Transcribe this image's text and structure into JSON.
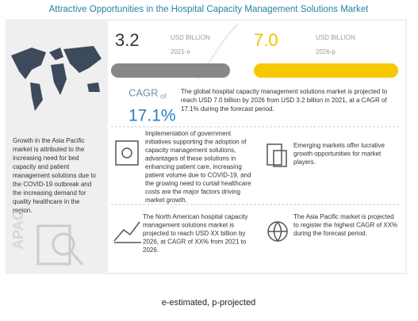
{
  "title": "Attractive Opportunities in the Hospital Capacity Management Solutions Market",
  "left_panel": {
    "text": [
      "Growth in the Asia Pacific",
      "market is attributed to the",
      "increasing need for bed",
      "capacity and patient",
      "management solutions due to",
      "the COVID-19 outbreak and",
      "the increasing demand for",
      "quality healthcare in the",
      "region."
    ],
    "label": "APAC"
  },
  "market": {
    "start_value": "3.2",
    "start_unit": "USD BILLION",
    "start_year": "2021-e",
    "end_value": "7.0",
    "end_unit": "USD BILLION",
    "end_year": "2026-p"
  },
  "cagr": {
    "label": "CAGR",
    "of": "of",
    "value": "17.1%",
    "text": [
      "The global hospital capacity management solutions market is projected to",
      "reach USD 7.0 billion by 2026 from USD 3.2 billion in 2021, at a CAGR of",
      "17.1% during the forecast period."
    ]
  },
  "insights": [
    {
      "text": [
        "Implementation of government",
        "initiatives supporting the adoption of",
        "capacity management solutions,",
        "advantages of these solutions in",
        "enhancing patient care, increasing",
        "patient volume due to COVID-19, and",
        "the growing need to curtail healthcare",
        "costs are the major factors driving",
        "market growth."
      ]
    },
    {
      "text": [
        "Emerging markets offer lucrative",
        "growth opportunities for market",
        "players."
      ]
    },
    {
      "text": [
        "The North American hospital capacity",
        "management solutions market is",
        "projected to reach USD XX billion by",
        "2026, at CAGR of XX% from 2021 to",
        "2026."
      ]
    },
    {
      "text": [
        "The Asia Pacific market is projected",
        "to register the highest CAGR of XX%",
        "during the forecast period."
      ]
    }
  ],
  "footnote": "e-estimated, p-projected"
}
